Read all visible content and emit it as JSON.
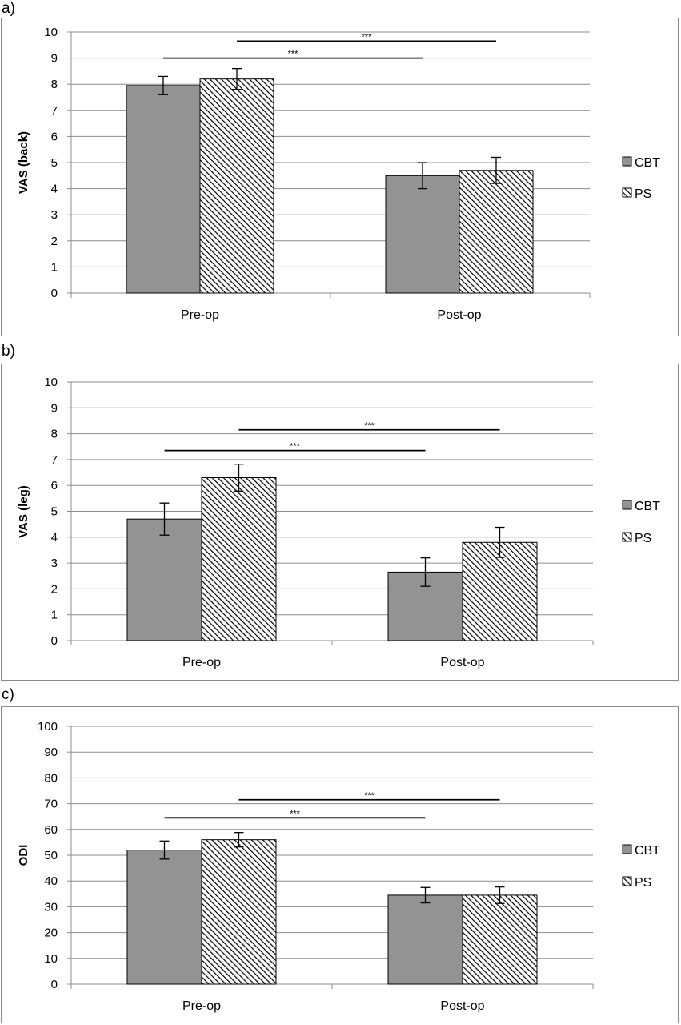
{
  "chart_data": [
    {
      "panel": "a)",
      "type": "bar",
      "ylabel": "VAS (back)",
      "xlabel": "",
      "ylim": [
        0,
        10
      ],
      "yticks": [
        "0",
        "1",
        "2",
        "3",
        "4",
        "5",
        "6",
        "7",
        "8",
        "9",
        "10"
      ],
      "categories": [
        "Pre-op",
        "Post-op"
      ],
      "series": [
        {
          "name": "CBT",
          "values": [
            7.95,
            4.5
          ],
          "errors": [
            0.35,
            0.5
          ],
          "color": "#939393",
          "pattern": "solid"
        },
        {
          "name": "PS",
          "values": [
            8.2,
            4.7
          ],
          "errors": [
            0.4,
            0.5
          ],
          "color": "#ffffff",
          "pattern": "diagonal-hatch"
        }
      ],
      "significance": [
        {
          "label": "***",
          "from": "Pre-op CBT",
          "to": "Post-op CBT",
          "level": 9.0
        },
        {
          "label": "***",
          "from": "Pre-op PS",
          "to": "Post-op PS",
          "level": 9.65
        }
      ],
      "grid": true,
      "legend": "right"
    },
    {
      "panel": "b)",
      "type": "bar",
      "ylabel": "VAS (leg)",
      "xlabel": "",
      "ylim": [
        0,
        10
      ],
      "yticks": [
        "0",
        "1",
        "2",
        "3",
        "4",
        "5",
        "6",
        "7",
        "8",
        "9",
        "10"
      ],
      "categories": [
        "Pre-op",
        "Post-op"
      ],
      "series": [
        {
          "name": "CBT",
          "values": [
            4.7,
            2.65
          ],
          "errors": [
            0.62,
            0.55
          ],
          "color": "#939393",
          "pattern": "solid"
        },
        {
          "name": "PS",
          "values": [
            6.3,
            3.8
          ],
          "errors": [
            0.52,
            0.58
          ],
          "color": "#ffffff",
          "pattern": "diagonal-hatch"
        }
      ],
      "significance": [
        {
          "label": "***",
          "from": "Pre-op CBT",
          "to": "Post-op CBT",
          "level": 7.35
        },
        {
          "label": "***",
          "from": "Pre-op PS",
          "to": "Post-op PS",
          "level": 8.15
        }
      ],
      "grid": true,
      "legend": "right"
    },
    {
      "panel": "c)",
      "type": "bar",
      "ylabel": "ODI",
      "xlabel": "",
      "ylim": [
        0,
        100
      ],
      "yticks": [
        "0",
        "10",
        "20",
        "30",
        "40",
        "50",
        "60",
        "70",
        "80",
        "90",
        "100"
      ],
      "categories": [
        "Pre-op",
        "Post-op"
      ],
      "series": [
        {
          "name": "CBT",
          "values": [
            52,
            34.5
          ],
          "errors": [
            3.5,
            3
          ],
          "color": "#939393",
          "pattern": "solid"
        },
        {
          "name": "PS",
          "values": [
            56,
            34.5
          ],
          "errors": [
            2.8,
            3.2
          ],
          "color": "#ffffff",
          "pattern": "diagonal-hatch"
        }
      ],
      "significance": [
        {
          "label": "***",
          "from": "Pre-op CBT",
          "to": "Post-op CBT",
          "level": 64.5
        },
        {
          "label": "***",
          "from": "Pre-op PS",
          "to": "Post-op PS",
          "level": 71.5
        }
      ],
      "grid": true,
      "legend": "right"
    }
  ]
}
